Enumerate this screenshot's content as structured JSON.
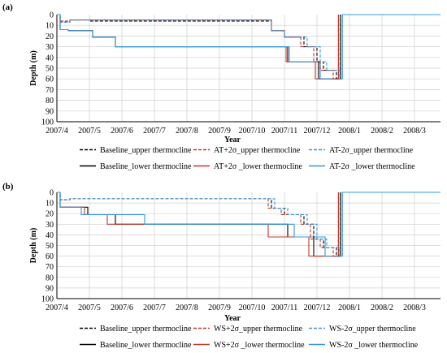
{
  "chart_data": [
    {
      "type": "line",
      "panel_label": "(a)",
      "xlabel": "Year",
      "ylabel": "Depth (m)",
      "x_ticks": [
        "2007/4",
        "2007/5",
        "2007/6",
        "2007/7",
        "2007/8",
        "2007/9",
        "2007/10",
        "2007/11",
        "2007/12",
        "2008/1",
        "2008/2",
        "2008/3"
      ],
      "y_ticks": [
        0,
        10,
        20,
        30,
        40,
        50,
        60,
        70,
        80,
        90,
        100
      ],
      "ylim": [
        0,
        100
      ],
      "y_inverted": true,
      "x_unit": "months since 2007/4",
      "xlim": [
        0,
        11.85
      ],
      "grid": true,
      "legend_position": "bottom",
      "series": [
        {
          "name": "Baseline_upper thermocline",
          "color": "#000000",
          "dash": "dashed",
          "x": [
            0.0,
            0.1,
            0.1,
            0.4,
            0.4,
            1.0,
            1.0,
            2.2,
            2.2,
            6.6,
            6.6,
            7.0,
            7.0,
            7.6,
            7.6,
            8.0,
            8.0,
            8.2,
            8.2,
            8.6,
            8.6,
            8.72,
            8.72
          ],
          "y": [
            0,
            0,
            7,
            7,
            5,
            5,
            6,
            6,
            6,
            6,
            15,
            15,
            21,
            21,
            30,
            30,
            44,
            44,
            52,
            52,
            60,
            60,
            0
          ]
        },
        {
          "name": "AT+2σ_upper thermocline",
          "color": "#c0392b",
          "dash": "dashed",
          "x": [
            0.0,
            0.1,
            0.1,
            0.4,
            0.4,
            6.6,
            6.6,
            7.0,
            7.0,
            7.5,
            7.5,
            7.9,
            7.9,
            8.1,
            8.1,
            8.5,
            8.5,
            8.66,
            8.66
          ],
          "y": [
            0,
            0,
            6,
            6,
            5,
            5,
            15,
            15,
            21,
            21,
            30,
            30,
            44,
            44,
            52,
            52,
            60,
            60,
            0
          ]
        },
        {
          "name": "AT-2σ_upper thermocline",
          "color": "#3498db",
          "dash": "dashed",
          "x": [
            0.0,
            0.1,
            0.1,
            0.4,
            0.4,
            6.6,
            6.6,
            7.0,
            7.0,
            7.7,
            7.7,
            8.1,
            8.1,
            8.3,
            8.3,
            8.7,
            8.7,
            8.78,
            8.78
          ],
          "y": [
            0,
            0,
            7,
            7,
            5,
            5,
            15,
            15,
            21,
            21,
            30,
            30,
            44,
            44,
            52,
            52,
            60,
            60,
            0
          ]
        },
        {
          "name": "Baseline_lower thermocline",
          "color": "#000000",
          "dash": "solid",
          "x": [
            0.0,
            0.1,
            0.1,
            0.35,
            0.35,
            1.1,
            1.1,
            1.8,
            1.8,
            7.1,
            7.1,
            8.05,
            8.05,
            8.72,
            8.72
          ],
          "y": [
            0,
            0,
            14,
            14,
            15,
            15,
            21,
            21,
            30,
            30,
            44,
            44,
            60,
            60,
            0
          ]
        },
        {
          "name": "AT+2σ _lower thermocline",
          "color": "#c0392b",
          "dash": "solid",
          "x": [
            0.0,
            0.1,
            0.1,
            0.35,
            0.35,
            1.1,
            1.1,
            1.8,
            1.8,
            7.05,
            7.05,
            7.95,
            7.95,
            8.66,
            8.66
          ],
          "y": [
            0,
            0,
            14,
            14,
            15,
            15,
            21,
            21,
            30,
            30,
            44,
            44,
            60,
            60,
            0
          ]
        },
        {
          "name": "AT-2σ _lower thermocline",
          "color": "#3498db",
          "dash": "solid",
          "x": [
            0.0,
            0.1,
            0.1,
            0.35,
            0.35,
            1.1,
            1.1,
            1.8,
            1.8,
            7.15,
            7.15,
            8.1,
            8.1,
            8.78,
            8.78,
            11.85
          ],
          "y": [
            0,
            0,
            14,
            14,
            15,
            15,
            21,
            21,
            30,
            30,
            44,
            44,
            60,
            60,
            0,
            0
          ]
        }
      ]
    },
    {
      "type": "line",
      "panel_label": "(b)",
      "xlabel": "Year",
      "ylabel": "Depth (m)",
      "x_ticks": [
        "2007/4",
        "2007/5",
        "2007/6",
        "2007/7",
        "2007/8",
        "2007/9",
        "2007/10",
        "2007/11",
        "2007/12",
        "2008/1",
        "2008/2",
        "2008/3"
      ],
      "y_ticks": [
        0,
        10,
        20,
        30,
        40,
        50,
        60,
        70,
        80,
        90,
        100
      ],
      "ylim": [
        0,
        100
      ],
      "y_inverted": true,
      "x_unit": "months since 2007/4",
      "xlim": [
        0,
        11.85
      ],
      "grid": true,
      "legend_position": "bottom",
      "series": [
        {
          "name": "Baseline_upper thermocline",
          "color": "#000000",
          "dash": "dashed",
          "x": [
            0.0,
            0.1,
            0.1,
            0.4,
            0.4,
            6.6,
            6.6,
            7.0,
            7.0,
            7.6,
            7.6,
            7.9,
            7.9,
            8.2,
            8.2,
            8.6,
            8.6,
            8.72,
            8.72
          ],
          "y": [
            0,
            0,
            7,
            7,
            6,
            6,
            15,
            15,
            21,
            21,
            30,
            30,
            44,
            44,
            52,
            52,
            60,
            60,
            0
          ]
        },
        {
          "name": "WS+2σ_upper thermocline",
          "color": "#c0392b",
          "dash": "dashed",
          "x": [
            0.0,
            0.1,
            0.1,
            0.4,
            0.4,
            6.5,
            6.5,
            6.9,
            6.9,
            7.5,
            7.5,
            7.8,
            7.8,
            8.1,
            8.1,
            8.5,
            8.5,
            8.66,
            8.66
          ],
          "y": [
            0,
            0,
            7,
            7,
            6,
            6,
            15,
            15,
            21,
            21,
            30,
            30,
            44,
            44,
            52,
            52,
            60,
            60,
            0
          ]
        },
        {
          "name": "WS-2σ_upper thermocline",
          "color": "#3498db",
          "dash": "dashed",
          "x": [
            0.0,
            0.1,
            0.1,
            0.4,
            0.4,
            6.7,
            6.7,
            7.1,
            7.1,
            7.7,
            7.7,
            8.0,
            8.0,
            8.3,
            8.3,
            8.7,
            8.7,
            8.78,
            8.78
          ],
          "y": [
            0,
            0,
            7,
            7,
            6,
            6,
            15,
            15,
            21,
            21,
            30,
            30,
            44,
            44,
            52,
            52,
            60,
            60,
            0
          ]
        },
        {
          "name": "Baseline_lower thermocline",
          "color": "#000000",
          "dash": "solid",
          "x": [
            0.0,
            0.1,
            0.1,
            0.95,
            0.95,
            1.8,
            1.8,
            3.1,
            3.1,
            7.1,
            7.1,
            7.9,
            7.9,
            8.72,
            8.72
          ],
          "y": [
            0,
            0,
            14,
            14,
            21,
            21,
            30,
            30,
            30,
            30,
            42,
            42,
            60,
            60,
            0
          ]
        },
        {
          "name": "WS+2σ _lower thermocline",
          "color": "#c0392b",
          "dash": "solid",
          "x": [
            0.0,
            0.1,
            0.1,
            0.85,
            0.85,
            1.55,
            1.55,
            6.5,
            6.5,
            7.75,
            7.75,
            8.66,
            8.66
          ],
          "y": [
            0,
            0,
            14,
            14,
            21,
            21,
            30,
            30,
            42,
            42,
            60,
            60,
            0
          ]
        },
        {
          "name": "WS-2σ _lower thermocline",
          "color": "#3498db",
          "dash": "solid",
          "x": [
            0.0,
            0.1,
            0.1,
            0.75,
            0.75,
            2.7,
            2.7,
            7.3,
            7.3,
            8.25,
            8.25,
            8.78,
            8.78,
            11.85
          ],
          "y": [
            0,
            0,
            14,
            14,
            21,
            21,
            30,
            30,
            42,
            42,
            60,
            60,
            0,
            0
          ]
        }
      ]
    }
  ]
}
